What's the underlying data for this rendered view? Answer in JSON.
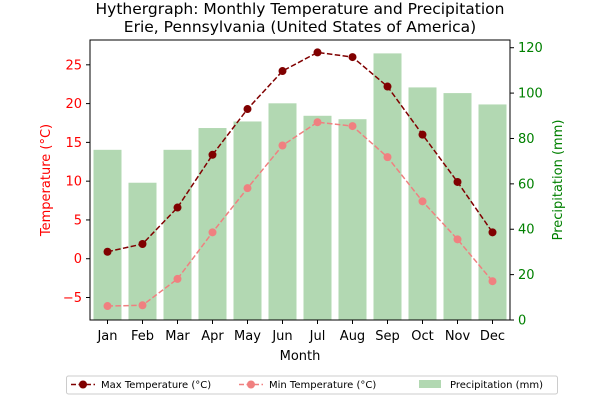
{
  "chart_data": {
    "type": "bar+line",
    "title": "Hythergraph: Monthly Temperature and Precipitation",
    "subtitle": "Erie, Pennsylvania (United States of America)",
    "xlabel": "Month",
    "ylabel_left": "Temperature (°C)",
    "ylabel_right": "Precipitation (mm)",
    "categories": [
      "Jan",
      "Feb",
      "Mar",
      "Apr",
      "May",
      "Jun",
      "Jul",
      "Aug",
      "Sep",
      "Oct",
      "Nov",
      "Dec"
    ],
    "ylim_left": [
      -7.9,
      28.2
    ],
    "ylim_right": [
      0,
      123.4
    ],
    "yticks_left": [
      -5,
      0,
      5,
      10,
      15,
      20,
      25
    ],
    "yticks_right": [
      0,
      20,
      40,
      60,
      80,
      100,
      120
    ],
    "grid": false,
    "legend_placement": "bottom-center",
    "series": [
      {
        "name": "Max Temperature (°C)",
        "kind": "line",
        "axis": "left",
        "color": "#800000",
        "style": "dashed",
        "values": [
          0.9,
          1.9,
          6.6,
          13.4,
          19.3,
          24.2,
          26.6,
          26.0,
          22.2,
          16.0,
          9.9,
          3.4
        ]
      },
      {
        "name": "Min Temperature (°C)",
        "kind": "line",
        "axis": "left",
        "color": "#f08080",
        "style": "dashed",
        "values": [
          -6.1,
          -6.0,
          -2.6,
          3.4,
          9.1,
          14.6,
          17.6,
          17.1,
          13.1,
          7.4,
          2.5,
          -2.9
        ]
      },
      {
        "name": "Precipitation (mm)",
        "kind": "bar",
        "axis": "right",
        "color": "#b2d8b2",
        "values": [
          75.0,
          60.5,
          75.0,
          84.6,
          87.5,
          95.5,
          90.0,
          88.5,
          117.5,
          102.5,
          100.0,
          95.0
        ]
      }
    ]
  },
  "colors": {
    "left_axis": "#ff0000",
    "right_axis": "#008000",
    "frame": "#000000"
  }
}
